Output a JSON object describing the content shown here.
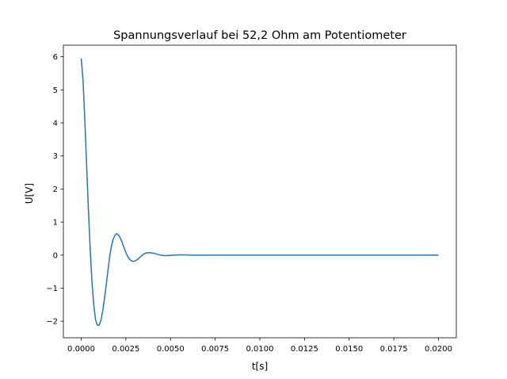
{
  "chart_data": {
    "type": "line",
    "title": "Spannungsverlauf bei 52,2 Ohm am Potentiometer",
    "xlabel": "t[s]",
    "ylabel": "U[V]",
    "xlim": [
      -0.001,
      0.021
    ],
    "ylim": [
      -2.5,
      6.35
    ],
    "grid": false,
    "legend": "none",
    "x_ticks": [
      0.0,
      0.0025,
      0.005,
      0.0075,
      0.01,
      0.0125,
      0.015,
      0.0175,
      0.02
    ],
    "x_tick_labels": [
      "0.0000",
      "0.0025",
      "0.0050",
      "0.0075",
      "0.0100",
      "0.0125",
      "0.0150",
      "0.0175",
      "0.0200"
    ],
    "y_ticks": [
      -2,
      -1,
      0,
      1,
      2,
      3,
      4,
      5,
      6
    ],
    "y_tick_labels": [
      "−2",
      "−1",
      "0",
      "1",
      "2",
      "3",
      "4",
      "5",
      "6"
    ],
    "colors": {
      "line": "#1f77b4",
      "axes": "#000000",
      "background": "#ffffff"
    },
    "series": [
      {
        "x": [
          0.0,
          0.0001,
          0.0002,
          0.0003,
          0.0004,
          0.0005,
          0.0006,
          0.0007,
          0.0008,
          0.0009,
          0.001,
          0.0011,
          0.0012,
          0.0013,
          0.0014,
          0.0015,
          0.0016,
          0.0017,
          0.0018,
          0.0019,
          0.002,
          0.0021,
          0.0022,
          0.0023,
          0.0024,
          0.0025,
          0.0026,
          0.0027,
          0.0028,
          0.0029,
          0.003,
          0.0031,
          0.0032,
          0.0033,
          0.0034,
          0.0035,
          0.0036,
          0.0037,
          0.0038,
          0.0039,
          0.004,
          0.0041,
          0.0042,
          0.0043,
          0.0044,
          0.0045,
          0.0046,
          0.0047,
          0.0048,
          0.0049,
          0.005,
          0.0052,
          0.0054,
          0.0056,
          0.0058,
          0.006,
          0.0062,
          0.0064,
          0.0066,
          0.0068,
          0.007,
          0.0075,
          0.008,
          0.0085,
          0.009,
          0.0095,
          0.01,
          0.011,
          0.012,
          0.013,
          0.014,
          0.015,
          0.016,
          0.017,
          0.018,
          0.019,
          0.02
        ],
        "values": [
          5.95,
          5.3,
          4.1,
          2.75,
          1.4,
          0.2,
          -0.8,
          -1.5,
          -1.95,
          -2.12,
          -2.12,
          -1.98,
          -1.7,
          -1.32,
          -0.9,
          -0.45,
          -0.02,
          0.3,
          0.5,
          0.61,
          0.65,
          0.6,
          0.5,
          0.37,
          0.22,
          0.08,
          -0.04,
          -0.12,
          -0.17,
          -0.19,
          -0.18,
          -0.15,
          -0.11,
          -0.06,
          -0.01,
          0.03,
          0.06,
          0.07,
          0.075,
          0.07,
          0.06,
          0.05,
          0.035,
          0.02,
          0.005,
          -0.005,
          -0.012,
          -0.015,
          -0.015,
          -0.012,
          -0.008,
          0.0,
          0.005,
          0.007,
          0.006,
          0.003,
          0.0,
          -0.002,
          -0.003,
          -0.002,
          0.0,
          0.001,
          0.0,
          0.0,
          0.0,
          0.0,
          0.0,
          0.0,
          0.0,
          0.0,
          0.0,
          0.0,
          0.0,
          0.0,
          0.0,
          0.0,
          0.0
        ]
      }
    ]
  }
}
